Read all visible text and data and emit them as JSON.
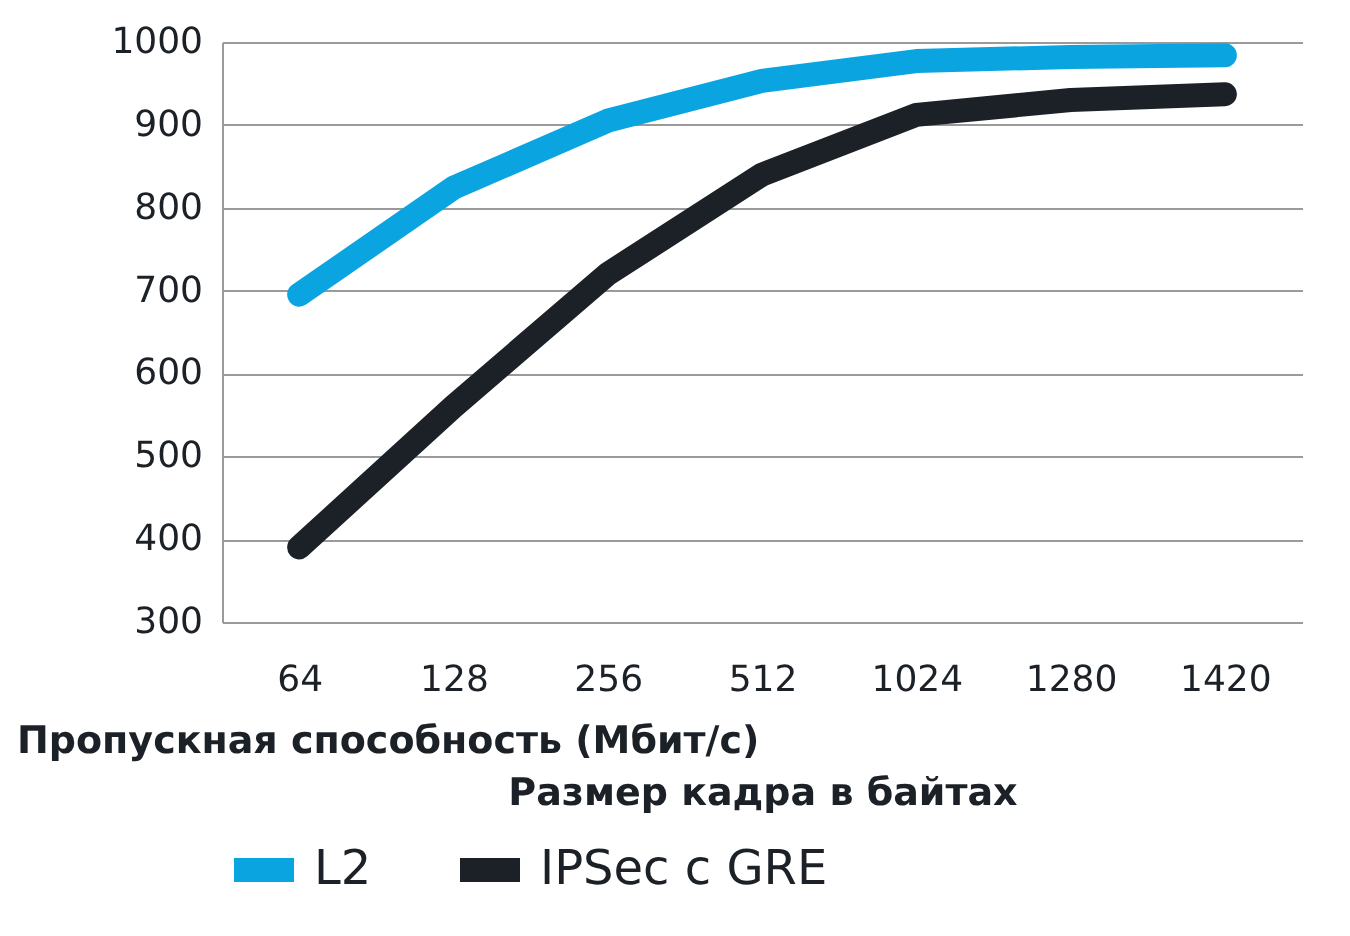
{
  "chart_data": {
    "type": "line",
    "xlabel": "Размер кадра в байтах",
    "ylabel": "Пропускная способность (Мбит/с)",
    "categories": [
      "64",
      "128",
      "256",
      "512",
      "1024",
      "1280",
      "1420"
    ],
    "series": [
      {
        "name": "L2",
        "color": "#0aa5e0",
        "values": [
          695,
          824,
          905,
          953,
          977,
          982,
          984
        ]
      },
      {
        "name": "IPSec с GRE",
        "color": "#1b2127",
        "values": [
          390,
          560,
          720,
          840,
          912,
          930,
          937
        ]
      }
    ],
    "ylim": [
      300,
      1000
    ],
    "yticks": [
      300,
      400,
      500,
      600,
      700,
      800,
      900,
      1000
    ],
    "grid": "y",
    "legend": "bottom",
    "marker": "none",
    "line_style": "solid"
  }
}
